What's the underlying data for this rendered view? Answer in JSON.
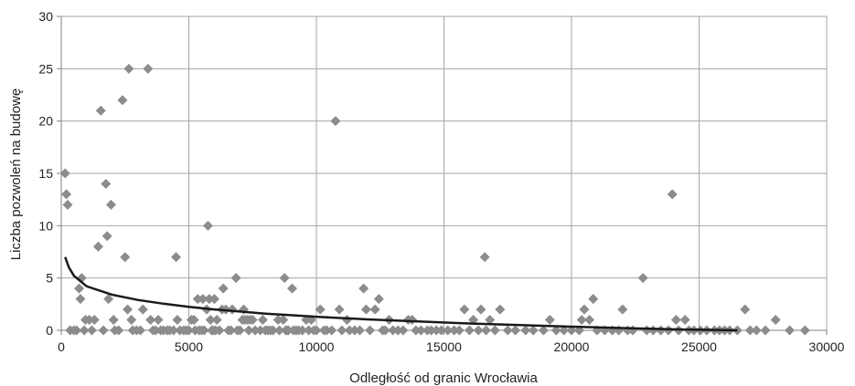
{
  "chart_data": {
    "type": "scatter",
    "title": "",
    "xlabel": "Odległość od granic Wrocławia",
    "ylabel": "Liczba pozwoleń na budowę",
    "xlim": [
      0,
      30000
    ],
    "ylim": [
      0,
      30
    ],
    "x_ticks": [
      "0",
      "5000",
      "10000",
      "15000",
      "20000",
      "25000",
      "30000"
    ],
    "y_ticks": [
      "0",
      "5",
      "10",
      "15",
      "20",
      "25",
      "30"
    ],
    "grid": true,
    "legend": "none",
    "colors": {
      "points": "#8c8c8c",
      "trend": "#1a1a1a",
      "grid": "#a6a6a6",
      "axis": "#808080"
    },
    "points": [
      [
        150,
        15
      ],
      [
        200,
        13
      ],
      [
        250,
        12
      ],
      [
        350,
        0
      ],
      [
        500,
        0
      ],
      [
        600,
        0
      ],
      [
        700,
        4
      ],
      [
        750,
        3
      ],
      [
        800,
        5
      ],
      [
        900,
        0
      ],
      [
        950,
        1
      ],
      [
        1100,
        1
      ],
      [
        1200,
        0
      ],
      [
        1300,
        1
      ],
      [
        1450,
        8
      ],
      [
        1550,
        21
      ],
      [
        1650,
        0
      ],
      [
        1750,
        14
      ],
      [
        1800,
        9
      ],
      [
        1850,
        3
      ],
      [
        1950,
        12
      ],
      [
        2050,
        1
      ],
      [
        2100,
        0
      ],
      [
        2250,
        0
      ],
      [
        2400,
        22
      ],
      [
        2500,
        7
      ],
      [
        2600,
        2
      ],
      [
        2650,
        25
      ],
      [
        2750,
        1
      ],
      [
        2800,
        0
      ],
      [
        2950,
        0
      ],
      [
        3100,
        0
      ],
      [
        3200,
        2
      ],
      [
        3400,
        25
      ],
      [
        3500,
        1
      ],
      [
        3600,
        0
      ],
      [
        3700,
        0
      ],
      [
        3800,
        1
      ],
      [
        3900,
        0
      ],
      [
        4000,
        0
      ],
      [
        4150,
        0
      ],
      [
        4250,
        0
      ],
      [
        4400,
        0
      ],
      [
        4500,
        7
      ],
      [
        4550,
        1
      ],
      [
        4650,
        0
      ],
      [
        4800,
        0
      ],
      [
        4900,
        0
      ],
      [
        5000,
        0
      ],
      [
        5100,
        1
      ],
      [
        5200,
        1
      ],
      [
        5250,
        0
      ],
      [
        5350,
        3
      ],
      [
        5400,
        0
      ],
      [
        5500,
        0
      ],
      [
        5550,
        3
      ],
      [
        5600,
        0
      ],
      [
        5700,
        2
      ],
      [
        5750,
        10
      ],
      [
        5800,
        3
      ],
      [
        5850,
        1
      ],
      [
        5900,
        0
      ],
      [
        5950,
        0
      ],
      [
        6000,
        3
      ],
      [
        6050,
        0
      ],
      [
        6100,
        1
      ],
      [
        6200,
        0
      ],
      [
        6300,
        2
      ],
      [
        6350,
        4
      ],
      [
        6450,
        2
      ],
      [
        6550,
        0
      ],
      [
        6650,
        0
      ],
      [
        6700,
        2
      ],
      [
        6850,
        5
      ],
      [
        6900,
        0
      ],
      [
        7000,
        0
      ],
      [
        7100,
        1
      ],
      [
        7150,
        2
      ],
      [
        7200,
        1
      ],
      [
        7300,
        1
      ],
      [
        7350,
        0
      ],
      [
        7400,
        1
      ],
      [
        7500,
        1
      ],
      [
        7600,
        0
      ],
      [
        7800,
        0
      ],
      [
        7900,
        1
      ],
      [
        8000,
        0
      ],
      [
        8100,
        0
      ],
      [
        8200,
        0
      ],
      [
        8300,
        0
      ],
      [
        8500,
        1
      ],
      [
        8550,
        0
      ],
      [
        8700,
        1
      ],
      [
        8750,
        5
      ],
      [
        8800,
        0
      ],
      [
        8850,
        0
      ],
      [
        8900,
        0
      ],
      [
        9050,
        4
      ],
      [
        9100,
        0
      ],
      [
        9200,
        0
      ],
      [
        9300,
        0
      ],
      [
        9450,
        0
      ],
      [
        9600,
        1
      ],
      [
        9700,
        0
      ],
      [
        9800,
        1
      ],
      [
        9900,
        0
      ],
      [
        10000,
        0
      ],
      [
        10150,
        2
      ],
      [
        10300,
        0
      ],
      [
        10400,
        0
      ],
      [
        10600,
        0
      ],
      [
        10750,
        20
      ],
      [
        10900,
        2
      ],
      [
        11000,
        0
      ],
      [
        11200,
        1
      ],
      [
        11300,
        0
      ],
      [
        11500,
        0
      ],
      [
        11700,
        0
      ],
      [
        11850,
        4
      ],
      [
        11950,
        2
      ],
      [
        12100,
        0
      ],
      [
        12300,
        2
      ],
      [
        12450,
        3
      ],
      [
        12600,
        0
      ],
      [
        12700,
        0
      ],
      [
        12850,
        1
      ],
      [
        13000,
        0
      ],
      [
        13200,
        0
      ],
      [
        13400,
        0
      ],
      [
        13600,
        1
      ],
      [
        13750,
        1
      ],
      [
        13900,
        0
      ],
      [
        14100,
        0
      ],
      [
        14350,
        0
      ],
      [
        14500,
        0
      ],
      [
        14700,
        0
      ],
      [
        14900,
        0
      ],
      [
        15150,
        0
      ],
      [
        15400,
        0
      ],
      [
        15600,
        0
      ],
      [
        15800,
        2
      ],
      [
        16000,
        0
      ],
      [
        16150,
        1
      ],
      [
        16350,
        0
      ],
      [
        16450,
        2
      ],
      [
        16600,
        7
      ],
      [
        16650,
        0
      ],
      [
        16800,
        1
      ],
      [
        17000,
        0
      ],
      [
        17200,
        2
      ],
      [
        17500,
        0
      ],
      [
        17800,
        0
      ],
      [
        18200,
        0
      ],
      [
        18500,
        0
      ],
      [
        18900,
        0
      ],
      [
        19150,
        1
      ],
      [
        19400,
        0
      ],
      [
        19700,
        0
      ],
      [
        20000,
        0
      ],
      [
        20300,
        0
      ],
      [
        20400,
        1
      ],
      [
        20500,
        2
      ],
      [
        20700,
        1
      ],
      [
        20850,
        3
      ],
      [
        21000,
        0
      ],
      [
        21300,
        0
      ],
      [
        21600,
        0
      ],
      [
        21850,
        0
      ],
      [
        22000,
        2
      ],
      [
        22200,
        0
      ],
      [
        22400,
        0
      ],
      [
        22800,
        5
      ],
      [
        22950,
        0
      ],
      [
        23200,
        0
      ],
      [
        23500,
        0
      ],
      [
        23800,
        0
      ],
      [
        23950,
        13
      ],
      [
        24100,
        1
      ],
      [
        24200,
        0
      ],
      [
        24450,
        1
      ],
      [
        24600,
        0
      ],
      [
        24800,
        0
      ],
      [
        25050,
        0
      ],
      [
        25300,
        0
      ],
      [
        25600,
        0
      ],
      [
        25800,
        0
      ],
      [
        26000,
        0
      ],
      [
        26200,
        0
      ],
      [
        26500,
        0
      ],
      [
        26800,
        2
      ],
      [
        27000,
        0
      ],
      [
        27250,
        0
      ],
      [
        27600,
        0
      ],
      [
        28000,
        1
      ],
      [
        28550,
        0
      ],
      [
        29150,
        0
      ]
    ],
    "trendline": {
      "type": "logarithmic",
      "points": [
        [
          150,
          7
        ],
        [
          300,
          6
        ],
        [
          500,
          5.2
        ],
        [
          1000,
          4.2
        ],
        [
          2000,
          3.4
        ],
        [
          3000,
          2.9
        ],
        [
          4000,
          2.55
        ],
        [
          5000,
          2.25
        ],
        [
          6000,
          2.0
        ],
        [
          7000,
          1.8
        ],
        [
          8000,
          1.6
        ],
        [
          9000,
          1.45
        ],
        [
          10000,
          1.3
        ],
        [
          12000,
          1.05
        ],
        [
          14000,
          0.85
        ],
        [
          16000,
          0.65
        ],
        [
          18000,
          0.5
        ],
        [
          20000,
          0.35
        ],
        [
          22000,
          0.22
        ],
        [
          24000,
          0.1
        ],
        [
          26500,
          0
        ]
      ]
    }
  }
}
